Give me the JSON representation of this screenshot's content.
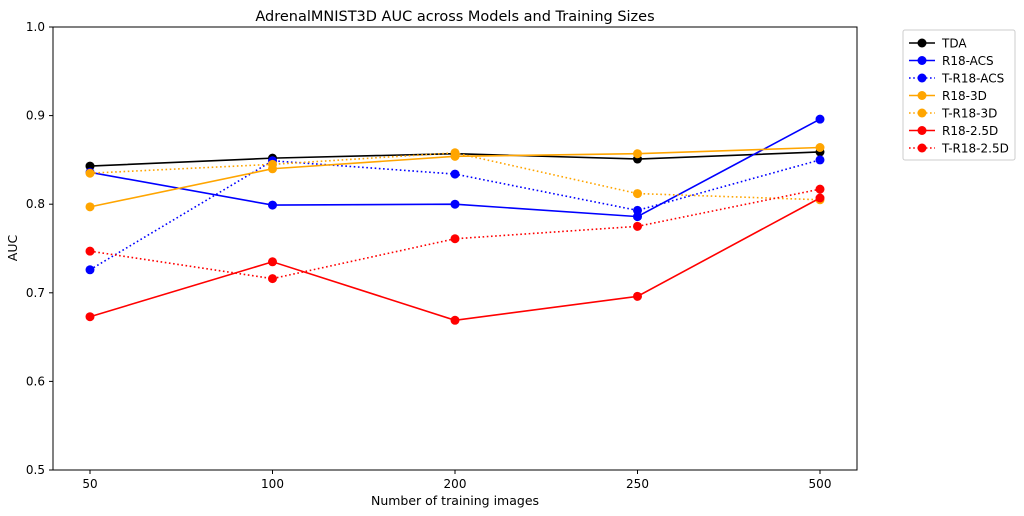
{
  "chart_data": {
    "type": "line",
    "title": "AdrenalMNIST3D AUC across Models and Training Sizes",
    "xlabel": "Number of training images",
    "ylabel": "AUC",
    "categories": [
      "50",
      "100",
      "200",
      "250",
      "500"
    ],
    "ylim": [
      0.5,
      1.0
    ],
    "yticks": [
      "0.5",
      "0.6",
      "0.7",
      "0.8",
      "0.9",
      "1.0"
    ],
    "grid": false,
    "legend_position": "outside-top-right",
    "series": [
      {
        "name": "TDA",
        "color": "#000000",
        "style": "solid",
        "values": [
          0.843,
          0.852,
          0.857,
          0.851,
          0.859
        ]
      },
      {
        "name": "R18-ACS",
        "color": "#0000ff",
        "style": "solid",
        "values": [
          0.836,
          0.799,
          0.8,
          0.786,
          0.896
        ]
      },
      {
        "name": "T-R18-ACS",
        "color": "#0000ff",
        "style": "dotted",
        "values": [
          0.726,
          0.849,
          0.834,
          0.793,
          0.85
        ]
      },
      {
        "name": "R18-3D",
        "color": "#ffa500",
        "style": "solid",
        "values": [
          0.797,
          0.84,
          0.854,
          0.857,
          0.864
        ]
      },
      {
        "name": "T-R18-3D",
        "color": "#ffa500",
        "style": "dotted",
        "values": [
          0.835,
          0.845,
          0.858,
          0.812,
          0.805
        ]
      },
      {
        "name": "R18-2.5D",
        "color": "#ff0000",
        "style": "solid",
        "values": [
          0.673,
          0.735,
          0.669,
          0.696,
          0.807
        ]
      },
      {
        "name": "T-R18-2.5D",
        "color": "#ff0000",
        "style": "dotted",
        "values": [
          0.747,
          0.716,
          0.761,
          0.775,
          0.817
        ]
      }
    ]
  }
}
